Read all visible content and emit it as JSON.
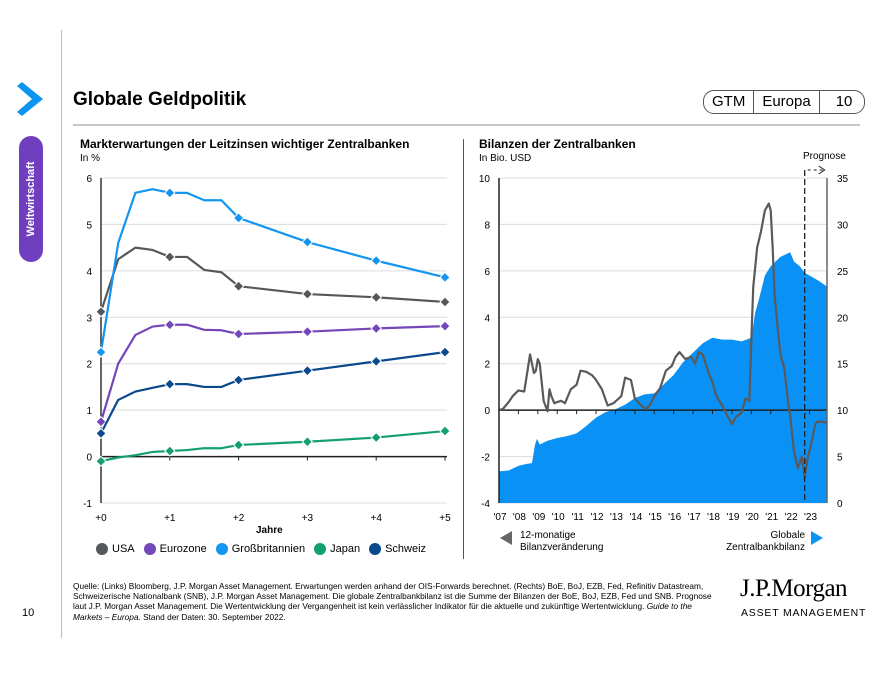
{
  "sidebar": {
    "section_label": "Weltwirtschaft",
    "page_number": "10"
  },
  "header": {
    "title": "Globale Geldpolitik",
    "badge": [
      "GTM",
      "Europa",
      "10"
    ]
  },
  "colors": {
    "accent": "#0A96F0",
    "purple_tab": "#6F3FBF",
    "usa": "#55585b",
    "eurozone": "#7346b9",
    "uk": "#1496f0",
    "japan": "#14a06e",
    "schweiz": "#0a4a8c",
    "balance_fill": "#0a91f5",
    "change_line": "#5a5a5a"
  },
  "chart_data": [
    {
      "type": "line",
      "title": "Markterwartungen der Leitzinsen wichtiger Zentralbanken",
      "subtitle": "In %",
      "xlabel": "Jahre",
      "ylabel": "",
      "xlim": [
        0,
        5
      ],
      "ylim": [
        -1,
        6
      ],
      "yticks": [
        -1,
        0,
        1,
        2,
        3,
        4,
        5,
        6
      ],
      "xticks": [
        0,
        1,
        2,
        3,
        4,
        5
      ],
      "xtick_labels": [
        "+0",
        "+1",
        "+2",
        "+3",
        "+4",
        "+5"
      ],
      "grid": true,
      "legend": "bottom",
      "x": [
        0,
        0.25,
        0.5,
        0.75,
        1,
        1.25,
        1.5,
        1.75,
        2,
        3,
        4,
        5
      ],
      "marker_x": [
        0,
        1,
        2,
        3,
        4,
        5
      ],
      "series": [
        {
          "name": "USA",
          "color_key": "usa",
          "values": [
            3.12,
            4.25,
            4.5,
            4.45,
            4.3,
            4.3,
            4.02,
            3.97,
            3.67,
            3.5,
            3.43,
            3.33
          ]
        },
        {
          "name": "Eurozone",
          "color_key": "eurozone",
          "values": [
            0.75,
            2.0,
            2.62,
            2.8,
            2.84,
            2.84,
            2.73,
            2.72,
            2.64,
            2.69,
            2.76,
            2.81
          ]
        },
        {
          "name": "Großbritannien",
          "color_key": "uk",
          "values": [
            2.25,
            4.6,
            5.68,
            5.76,
            5.68,
            5.68,
            5.52,
            5.52,
            5.14,
            4.62,
            4.22,
            3.86
          ]
        },
        {
          "name": "Japan",
          "color_key": "japan",
          "values": [
            -0.1,
            -0.02,
            0.03,
            0.1,
            0.12,
            0.14,
            0.18,
            0.18,
            0.25,
            0.32,
            0.41,
            0.55
          ]
        },
        {
          "name": "Schweiz",
          "color_key": "schweiz",
          "values": [
            0.5,
            1.22,
            1.4,
            1.48,
            1.56,
            1.56,
            1.5,
            1.5,
            1.65,
            1.85,
            2.05,
            2.25
          ]
        }
      ]
    },
    {
      "type": "area",
      "title": "Bilanzen der Zentralbanken",
      "subtitle": "In Bio. USD",
      "xlabel": "",
      "xlim": [
        2007,
        2023.9
      ],
      "xtick_labels": [
        "'07",
        "'08",
        "'09",
        "'10",
        "'11",
        "'12",
        "'13",
        "'14",
        "'15",
        "'16",
        "'17",
        "'18",
        "'19",
        "'20",
        "'21",
        "'22",
        "'23"
      ],
      "ylim_left": [
        -4,
        10
      ],
      "yticks_left": [
        -4,
        -2,
        0,
        2,
        4,
        6,
        8,
        10
      ],
      "ylim_right": [
        0,
        35
      ],
      "yticks_right": [
        0,
        5,
        10,
        15,
        20,
        25,
        30,
        35
      ],
      "grid": true,
      "forecast_start": 2022.75,
      "forecast_label": "Prognose",
      "left_axis_label": "12-monatige Bilanzveränderung",
      "left_axis_label_lines": [
        "12-monatige",
        "Bilanzveränderung"
      ],
      "right_axis_label_lines": [
        "Globale",
        "Zentralbankbilanz"
      ],
      "series": [
        {
          "name": "Globale Zentralbankbilanz",
          "axis": "right",
          "kind": "area",
          "color_key": "balance_fill",
          "x": [
            2007,
            2007.5,
            2008,
            2008.4,
            2008.7,
            2008.85,
            2008.95,
            2009.1,
            2009.5,
            2010,
            2010.5,
            2011,
            2011.5,
            2012,
            2012.5,
            2013,
            2013.5,
            2014,
            2014.5,
            2015,
            2015.5,
            2016,
            2016.5,
            2017,
            2017.5,
            2018,
            2018.5,
            2019,
            2019.5,
            2020,
            2020.2,
            2020.4,
            2020.7,
            2021,
            2021.5,
            2022,
            2022.2,
            2022.5,
            2022.75,
            2023,
            2023.5,
            2023.9
          ],
          "values": [
            3.4,
            3.5,
            4.0,
            4.2,
            4.3,
            6.2,
            6.9,
            6.3,
            6.7,
            7.0,
            7.2,
            7.5,
            8.3,
            9.2,
            9.8,
            10.1,
            10.6,
            11.3,
            11.7,
            11.8,
            12.8,
            13.8,
            15.2,
            16.2,
            17.2,
            17.8,
            17.6,
            17.6,
            17.4,
            17.8,
            20.5,
            22.0,
            24.5,
            25.5,
            26.5,
            27.0,
            26.0,
            25.5,
            24.8,
            24.5,
            23.9,
            23.3
          ]
        },
        {
          "name": "12-monatige Bilanzveränderung",
          "axis": "left",
          "kind": "line",
          "color_key": "change_line",
          "x": [
            2007,
            2007.2,
            2007.5,
            2007.7,
            2008,
            2008.3,
            2008.6,
            2008.8,
            2008.9,
            2009.0,
            2009.1,
            2009.3,
            2009.5,
            2009.6,
            2009.7,
            2009.85,
            2010,
            2010.2,
            2010.4,
            2010.7,
            2011,
            2011.2,
            2011.5,
            2011.8,
            2012,
            2012.3,
            2012.6,
            2012.9,
            2013.1,
            2013.3,
            2013.5,
            2013.8,
            2014,
            2014.2,
            2014.4,
            2014.6,
            2014.8,
            2015,
            2015.3,
            2015.6,
            2015.9,
            2016.1,
            2016.3,
            2016.6,
            2016.9,
            2017.1,
            2017.3,
            2017.5,
            2017.8,
            2018,
            2018.2,
            2018.5,
            2018.8,
            2019,
            2019.2,
            2019.5,
            2019.7,
            2019.9,
            2020,
            2020.1,
            2020.3,
            2020.5,
            2020.7,
            2020.9,
            2021.0,
            2021.1,
            2021.2,
            2021.35,
            2021.5,
            2021.7,
            2021.9,
            2022,
            2022.2,
            2022.4,
            2022.6,
            2022.75,
            2022.9,
            2023.1,
            2023.3,
            2023.4,
            2023.55,
            2023.7,
            2023.9
          ],
          "values": [
            0.0,
            0.05,
            0.35,
            0.6,
            0.85,
            0.8,
            2.4,
            1.6,
            1.7,
            2.2,
            2.0,
            0.4,
            -0.05,
            0.9,
            0.6,
            0.3,
            0.35,
            0.4,
            0.3,
            0.9,
            1.1,
            1.7,
            1.65,
            1.5,
            1.3,
            0.9,
            0.2,
            0.3,
            0.45,
            0.6,
            1.4,
            1.3,
            0.5,
            0.3,
            0.15,
            0.05,
            0.25,
            0.6,
            0.95,
            1.7,
            1.9,
            2.3,
            2.5,
            2.2,
            2.3,
            2.0,
            2.5,
            2.4,
            1.6,
            1.2,
            0.6,
            0.2,
            -0.3,
            -0.6,
            -0.3,
            -0.1,
            0.5,
            0.4,
            3.0,
            5.3,
            7.0,
            7.7,
            8.6,
            8.9,
            8.6,
            7.0,
            5.0,
            3.6,
            2.4,
            1.8,
            0.3,
            -0.2,
            -1.8,
            -2.5,
            -2.0,
            -2.9,
            -2.1,
            -1.4,
            -0.6,
            -0.5,
            -0.5,
            -0.5,
            -0.55
          ]
        }
      ]
    }
  ],
  "left_chart": {
    "title": "Markterwartungen der Leitzinsen wichtiger Zentralbanken",
    "subtitle": "In %",
    "xlabel": "Jahre",
    "legend": [
      "USA",
      "Eurozone",
      "Großbritannien",
      "Japan",
      "Schweiz"
    ]
  },
  "right_chart": {
    "title": "Bilanzen der Zentralbanken",
    "subtitle": "In Bio. USD",
    "forecast_label": "Prognose",
    "left_note_1": "12-monatige",
    "left_note_2": "Bilanzveränderung",
    "right_note_1": "Globale",
    "right_note_2": "Zentralbankbilanz"
  },
  "footer": {
    "text_main": "Quelle: (Links) Bloomberg, J.P. Morgan Asset Management. Erwartungen werden anhand der OIS-Forwards berechnet. (Rechts) BoE, BoJ, EZB, Fed, Refinitiv Datastream, Schweizerische Nationalbank (SNB), J.P. Morgan Asset Management. Die globale Zentralbankbilanz ist die Summe der Bilanzen der BoE, BoJ, EZB, Fed und SNB. Prognose laut J.P. Morgan Asset Management. Die Wertentwicklung der Vergangenheit ist kein verlässlicher Indikator für die aktuelle und zukünftige Wertentwicklung. ",
    "text_italic": "Guide to the Markets – Europa",
    "text_end": ". Stand der Daten: 30. September 2022.",
    "logo_line1": "J.P.Morgan",
    "logo_line2": "ASSET MANAGEMENT"
  }
}
